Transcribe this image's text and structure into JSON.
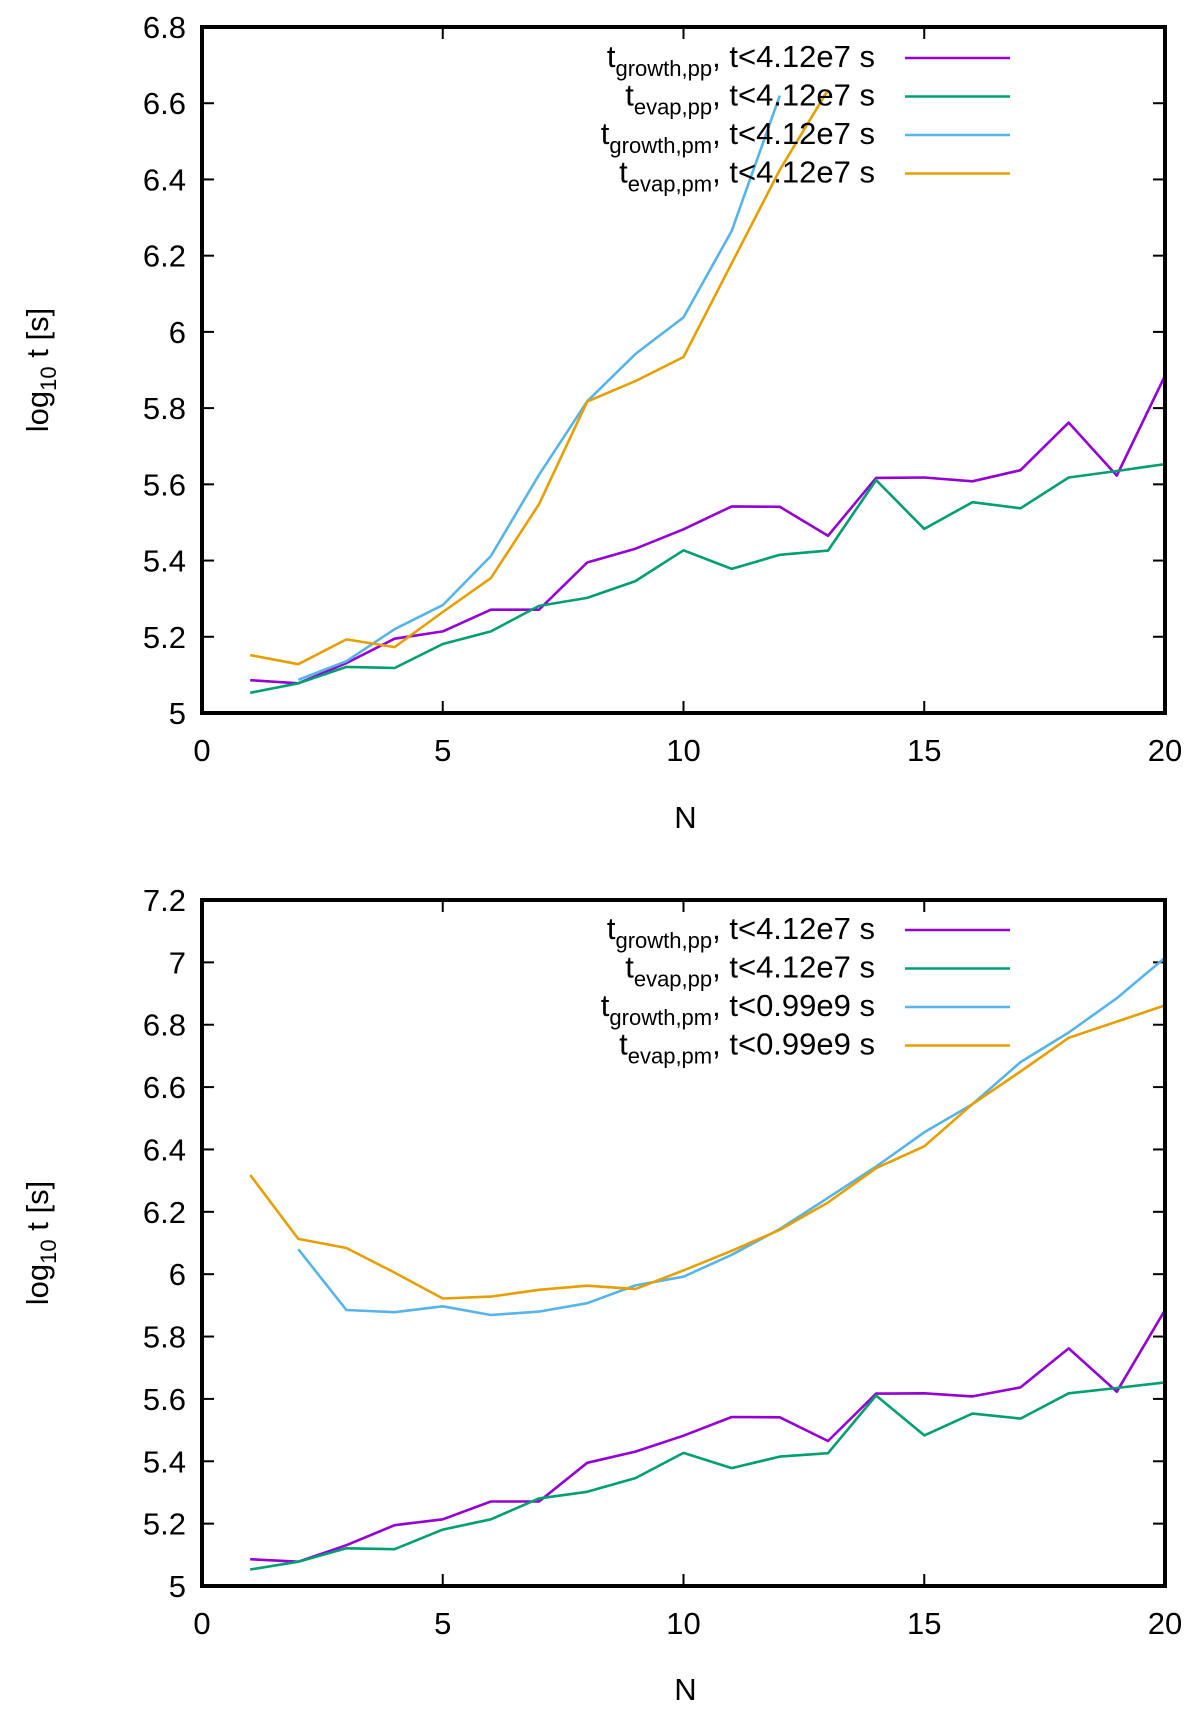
{
  "chart_data": [
    {
      "type": "line",
      "xlabel": "N",
      "ylabel_main": "log",
      "ylabel_sub": "10",
      "ylabel_rest": " t [s]",
      "xlim": [
        0,
        20
      ],
      "ylim": [
        5,
        6.8
      ],
      "xticks": [
        0,
        5,
        10,
        15,
        20
      ],
      "yticks": [
        5,
        5.2,
        5.4,
        5.6,
        5.8,
        6,
        6.2,
        6.4,
        6.6,
        6.8
      ],
      "xtick_labels": [
        "0",
        "5",
        "10",
        "15",
        "20"
      ],
      "ytick_labels": [
        "5",
        "5.2",
        "5.4",
        "5.6",
        "5.8",
        "6",
        "6.2",
        "6.4",
        "6.6",
        "6.8"
      ],
      "legend_position": "top-right",
      "series": [
        {
          "name": "t_growth,pp, t<4.12e7 s",
          "label_main": "t",
          "label_sub": "growth,pp",
          "label_rest": ", t<4.12e7 s",
          "color": "#9400d3",
          "x": [
            1,
            2,
            3,
            4,
            5,
            6,
            7,
            8,
            9,
            10,
            11,
            12,
            13,
            14,
            15,
            16,
            17,
            18,
            19,
            20
          ],
          "values": [
            5.086,
            5.078,
            5.131,
            5.195,
            5.214,
            5.271,
            5.271,
            5.395,
            5.431,
            5.482,
            5.542,
            5.541,
            5.465,
            5.617,
            5.618,
            5.608,
            5.637,
            5.762,
            5.623,
            5.885
          ]
        },
        {
          "name": "t_evap,pp, t<4.12e7 s",
          "label_main": "t",
          "label_sub": "evap,pp",
          "label_rest": ", t<4.12e7 s",
          "color": "#009e73",
          "x": [
            1,
            2,
            3,
            4,
            5,
            6,
            7,
            8,
            9,
            10,
            11,
            12,
            13,
            14,
            15,
            16,
            17,
            18,
            19,
            20
          ],
          "values": [
            5.053,
            5.078,
            5.121,
            5.118,
            5.181,
            5.214,
            5.281,
            5.302,
            5.346,
            5.427,
            5.378,
            5.415,
            5.426,
            5.611,
            5.483,
            5.553,
            5.537,
            5.618,
            5.635,
            5.653
          ]
        },
        {
          "name": "t_growth,pm, t<4.12e7 s",
          "label_main": "t",
          "label_sub": "growth,pm",
          "label_rest": ", t<4.12e7 s",
          "color": "#56b4e9",
          "x": [
            2,
            3,
            4,
            5,
            6,
            7,
            8,
            9,
            10,
            11,
            12
          ],
          "values": [
            5.087,
            5.136,
            5.22,
            5.283,
            5.412,
            5.625,
            5.818,
            5.942,
            6.038,
            6.265,
            6.62
          ]
        },
        {
          "name": "t_evap,pm, t<4.12e7 s",
          "label_main": "t",
          "label_sub": "evap,pm",
          "label_rest": ", t<4.12e7 s",
          "color": "#e69f00",
          "x": [
            1,
            2,
            3,
            4,
            5,
            6,
            7,
            8,
            9,
            10,
            11,
            12,
            13
          ],
          "values": [
            5.152,
            5.128,
            5.193,
            5.173,
            5.265,
            5.354,
            5.548,
            5.817,
            5.871,
            5.934,
            6.18,
            6.425,
            6.635
          ]
        }
      ]
    },
    {
      "type": "line",
      "xlabel": "N",
      "ylabel_main": "log",
      "ylabel_sub": "10",
      "ylabel_rest": " t [s]",
      "xlim": [
        0,
        20
      ],
      "ylim": [
        5,
        7.2
      ],
      "xticks": [
        0,
        5,
        10,
        15,
        20
      ],
      "yticks": [
        5,
        5.2,
        5.4,
        5.6,
        5.8,
        6,
        6.2,
        6.4,
        6.6,
        6.8,
        7,
        7.2
      ],
      "xtick_labels": [
        "0",
        "5",
        "10",
        "15",
        "20"
      ],
      "ytick_labels": [
        "5",
        "5.2",
        "5.4",
        "5.6",
        "5.8",
        "6",
        "6.2",
        "6.4",
        "6.6",
        "6.8",
        "7",
        "7.2"
      ],
      "legend_position": "top-right",
      "series": [
        {
          "name": "t_growth,pp, t<4.12e7 s",
          "label_main": "t",
          "label_sub": "growth,pp",
          "label_rest": ", t<4.12e7 s",
          "color": "#9400d3",
          "x": [
            1,
            2,
            3,
            4,
            5,
            6,
            7,
            8,
            9,
            10,
            11,
            12,
            13,
            14,
            15,
            16,
            17,
            18,
            19,
            20
          ],
          "values": [
            5.086,
            5.078,
            5.131,
            5.195,
            5.214,
            5.271,
            5.271,
            5.395,
            5.431,
            5.482,
            5.542,
            5.541,
            5.465,
            5.617,
            5.618,
            5.608,
            5.637,
            5.762,
            5.623,
            5.885
          ]
        },
        {
          "name": "t_evap,pp, t<4.12e7 s",
          "label_main": "t",
          "label_sub": "evap,pp",
          "label_rest": ", t<4.12e7 s",
          "color": "#009e73",
          "x": [
            1,
            2,
            3,
            4,
            5,
            6,
            7,
            8,
            9,
            10,
            11,
            12,
            13,
            14,
            15,
            16,
            17,
            18,
            19,
            20
          ],
          "values": [
            5.053,
            5.078,
            5.121,
            5.118,
            5.181,
            5.214,
            5.281,
            5.302,
            5.346,
            5.427,
            5.378,
            5.415,
            5.426,
            5.611,
            5.483,
            5.553,
            5.537,
            5.618,
            5.635,
            5.653
          ]
        },
        {
          "name": "t_growth,pm, t<0.99e9 s",
          "label_main": "t",
          "label_sub": "growth,pm",
          "label_rest": ", t<0.99e9 s",
          "color": "#56b4e9",
          "x": [
            2,
            3,
            4,
            5,
            6,
            7,
            8,
            9,
            10,
            11,
            12,
            13,
            14,
            15,
            16,
            17,
            18,
            19,
            20
          ],
          "values": [
            6.08,
            5.885,
            5.878,
            5.897,
            5.869,
            5.88,
            5.907,
            5.964,
            5.992,
            6.062,
            6.145,
            6.245,
            6.345,
            6.455,
            6.545,
            6.68,
            6.775,
            6.885,
            7.015
          ]
        },
        {
          "name": "t_evap,pm, t<0.99e9 s",
          "label_main": "t",
          "label_sub": "evap,pm",
          "label_rest": ", t<0.99e9 s",
          "color": "#e69f00",
          "x": [
            1,
            2,
            3,
            4,
            5,
            6,
            7,
            8,
            9,
            10,
            11,
            12,
            13,
            14,
            15,
            16,
            17,
            18,
            19,
            20
          ],
          "values": [
            6.318,
            6.113,
            6.084,
            6.005,
            5.922,
            5.928,
            5.95,
            5.963,
            5.952,
            6.012,
            6.075,
            6.142,
            6.23,
            6.34,
            6.41,
            6.545,
            6.65,
            6.758,
            6.81,
            6.862
          ]
        }
      ]
    }
  ]
}
